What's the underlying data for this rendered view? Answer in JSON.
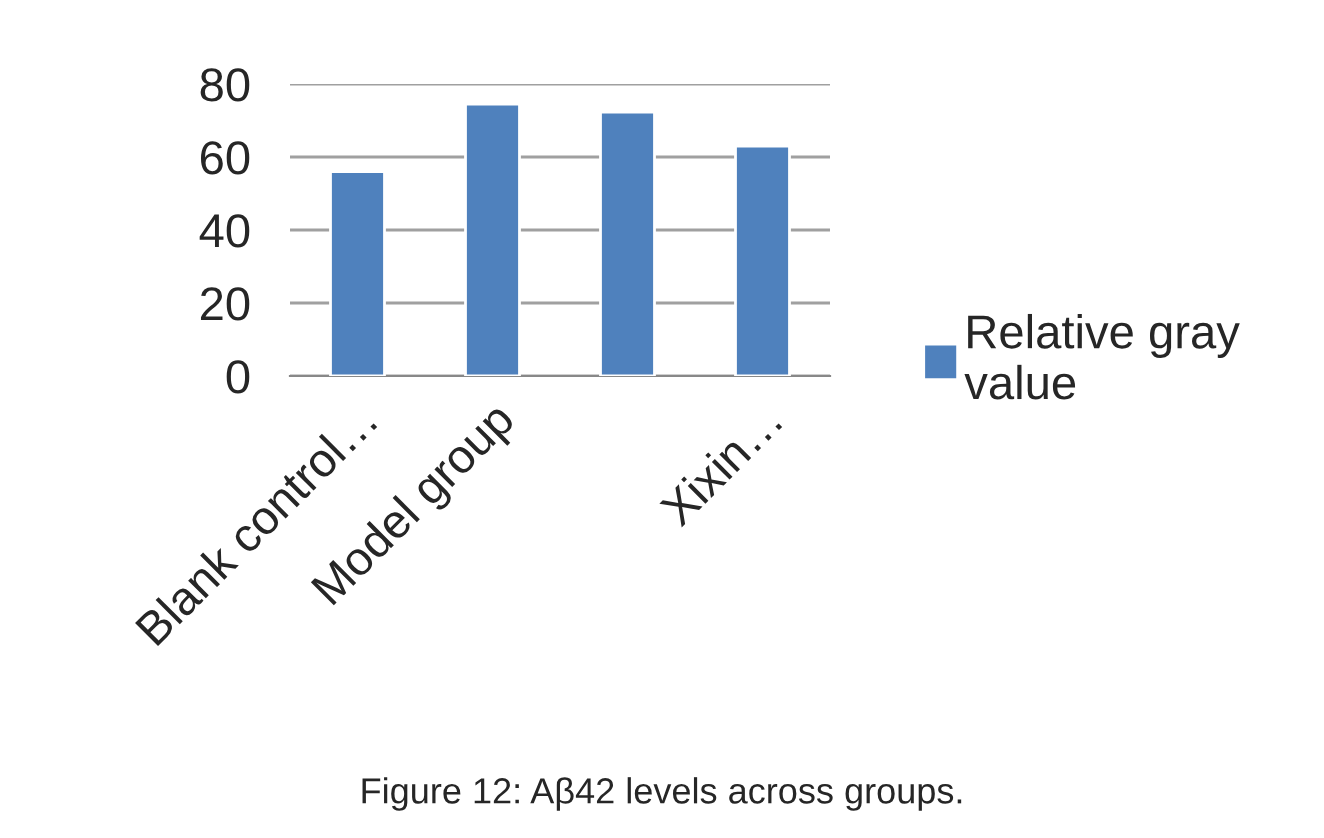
{
  "chart_data": {
    "type": "bar",
    "categories": [
      "Blank control…",
      "Model group",
      null,
      "Xixin…"
    ],
    "series": [
      {
        "name": "Relative gray value",
        "color": "#4f81bd",
        "values": [
          56,
          74.5,
          72.3,
          63
        ]
      }
    ],
    "ylim": [
      0,
      80
    ],
    "yticks": [
      0,
      20,
      40,
      60,
      80
    ],
    "grid": "y",
    "legend": "right",
    "annotations": [
      "Figure 12: Aβ42 levels across groups."
    ]
  }
}
